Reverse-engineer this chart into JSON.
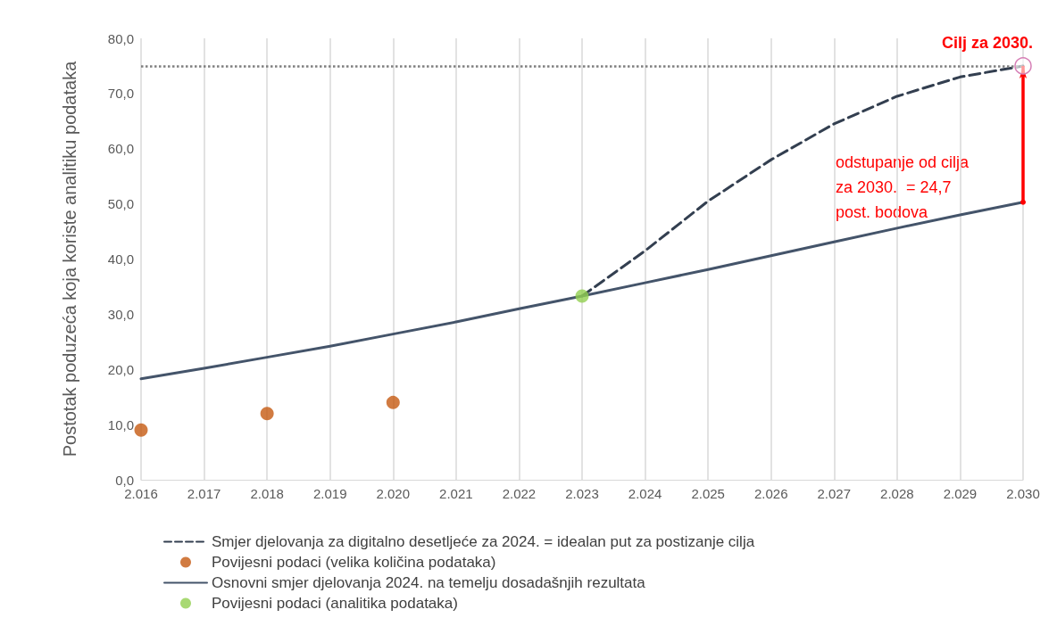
{
  "chart_data": {
    "type": "line",
    "ylabel": "Postotak poduzeća koja koriste analitiku podataka",
    "xlim": [
      2016,
      2030
    ],
    "xticks": [
      {
        "value": 2016,
        "label": "2.016"
      },
      {
        "value": 2017,
        "label": "2.017"
      },
      {
        "value": 2018,
        "label": "2.018"
      },
      {
        "value": 2019,
        "label": "2.019"
      },
      {
        "value": 2020,
        "label": "2.020"
      },
      {
        "value": 2021,
        "label": "2.021"
      },
      {
        "value": 2022,
        "label": "2.022"
      },
      {
        "value": 2023,
        "label": "2.023"
      },
      {
        "value": 2024,
        "label": "2.024"
      },
      {
        "value": 2025,
        "label": "2.025"
      },
      {
        "value": 2026,
        "label": "2.026"
      },
      {
        "value": 2027,
        "label": "2.027"
      },
      {
        "value": 2028,
        "label": "2.028"
      },
      {
        "value": 2029,
        "label": "2.029"
      },
      {
        "value": 2030,
        "label": "2.030"
      }
    ],
    "ylim": [
      0,
      80
    ],
    "yticks": [
      {
        "value": 0,
        "label": "0,0"
      },
      {
        "value": 10,
        "label": "10,0"
      },
      {
        "value": 20,
        "label": "20,0"
      },
      {
        "value": 30,
        "label": "30,0"
      },
      {
        "value": 40,
        "label": "40,0"
      },
      {
        "value": 50,
        "label": "50,0"
      },
      {
        "value": 60,
        "label": "60,0"
      },
      {
        "value": 70,
        "label": "70,0"
      },
      {
        "value": 80,
        "label": "80,0"
      }
    ],
    "grid": "x",
    "legend": "bottom",
    "series": [
      {
        "name": "Smjer djelovanja za digitalno desetljeće za 2024. = idealan put za postizanje cilja",
        "type": "line",
        "line_style": "dashed",
        "marker": "none",
        "color": "#333f50",
        "x": [
          2023,
          2024,
          2025,
          2026,
          2027,
          2028,
          2029,
          2030
        ],
        "values": [
          33.3,
          41.5,
          50.5,
          58,
          64.5,
          69.5,
          73,
          75
        ]
      },
      {
        "name": "Povijesni podaci (velika količina podataka)",
        "type": "scatter",
        "marker": "circle",
        "color": "#c55a11",
        "x": [
          2016,
          2018,
          2020
        ],
        "values": [
          9,
          12,
          14
        ]
      },
      {
        "name": "Osnovni smjer djelovanja 2024. na temelju dosadašnjih rezultata",
        "type": "line",
        "line_style": "solid",
        "marker": "none",
        "color": "#44546a",
        "x": [
          2016,
          2017,
          2018,
          2019,
          2020,
          2021,
          2022,
          2023,
          2024,
          2025,
          2026,
          2027,
          2028,
          2029,
          2030
        ],
        "values": [
          18.3,
          20.2,
          22.2,
          24.2,
          26.4,
          28.6,
          31,
          33.3,
          35.7,
          38.1,
          40.6,
          43.1,
          45.6,
          48,
          50.3
        ]
      },
      {
        "name": "Povijesni podaci (analitika podataka)",
        "type": "scatter",
        "marker": "circle",
        "color": "#92d050",
        "x": [
          2023
        ],
        "values": [
          33.3
        ]
      }
    ],
    "ref_lines": [
      {
        "axis": "y",
        "value": 75,
        "color": "#7f7f7f",
        "line_style": "dotted"
      }
    ],
    "annotations": [
      {
        "text": "Cilj za 2030.",
        "x": 2030,
        "y": 75
      },
      "odstupanje od cilja za 2030.  = 24,7 post. bodova"
    ]
  }
}
